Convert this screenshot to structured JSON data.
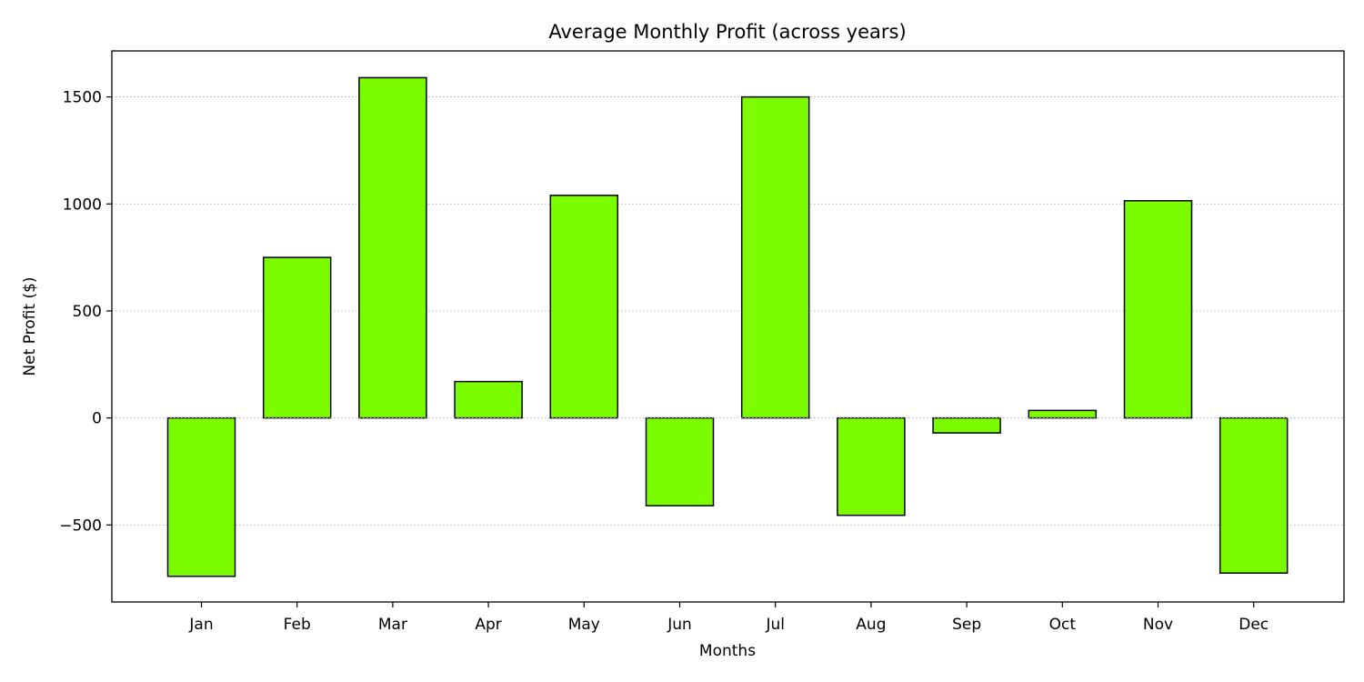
{
  "chart_data": {
    "type": "bar",
    "title": "Average Monthly Profit (across years)",
    "xlabel": "Months",
    "ylabel": "Net Profit ($)",
    "categories": [
      "Jan",
      "Feb",
      "Mar",
      "Apr",
      "May",
      "Jun",
      "Jul",
      "Aug",
      "Sep",
      "Oct",
      "Nov",
      "Dec"
    ],
    "values": [
      -740,
      750,
      1590,
      170,
      1040,
      -410,
      1500,
      -455,
      -70,
      35,
      1015,
      -725
    ],
    "ylim": [
      -860,
      1715
    ],
    "yticks": [
      -500,
      0,
      500,
      1000,
      1500
    ],
    "ytick_labels": [
      "−500",
      "0",
      "500",
      "1000",
      "1500"
    ],
    "grid": "y-dotted",
    "bar_color": "#7cfc00",
    "edge_color": "#000000",
    "grid_color": "#b0b0b0"
  }
}
